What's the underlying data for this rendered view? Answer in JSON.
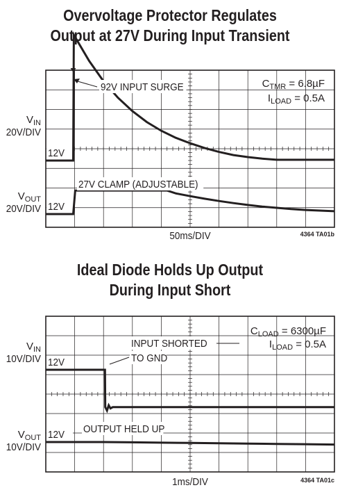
{
  "charts_text": {
    "top_title_line1": "Overvoltage Protector Regulates",
    "top_title_line2": "Output at 27V During Input Transient",
    "bottom_title_line1": "Ideal Diode Holds Up Output",
    "bottom_title_line2": "During Input Short"
  },
  "chart_data": [
    {
      "type": "line",
      "title": "Overvoltage Protector Regulates Output at 27V During Input Transient",
      "xlabel": "50ms/DIV",
      "code": "4364 TA01b",
      "x_unit": "div",
      "xlim": [
        0,
        10
      ],
      "grid": true,
      "conditions": [
        {
          "main": "C",
          "sub": "TMR",
          "rest": " = 6.8µF"
        },
        {
          "main": "I",
          "sub": "LOAD",
          "rest": " = 0.5A"
        }
      ],
      "channels": [
        {
          "name_main": "V",
          "name_sub": "IN",
          "scale": "20V/DIV",
          "ground_label": "12V"
        },
        {
          "name_main": "V",
          "name_sub": "OUT",
          "scale": "20V/DIV",
          "ground_label": "12V"
        }
      ],
      "annotations": [
        "92V INPUT SURGE",
        "27V CLAMP (ADJUSTABLE)"
      ],
      "series": [
        {
          "channel": 0,
          "x": [
            0,
            0.95,
            0.97,
            1.5,
            2,
            2.5,
            3,
            3.5,
            4,
            4.5,
            5,
            5.5,
            6,
            6.5,
            7,
            7.5,
            8,
            10
          ],
          "y": [
            12,
            12,
            92,
            75.5,
            62.5,
            52,
            43.5,
            36.5,
            31,
            26.5,
            23,
            20,
            17.5,
            15.5,
            14.2,
            13.2,
            12.5,
            12.5
          ]
        },
        {
          "channel": 1,
          "x": [
            0,
            0.95,
            1.02,
            4.2,
            4.5,
            5,
            5.5,
            6,
            6.5,
            7,
            7.5,
            8,
            8.5,
            9,
            10
          ],
          "y": [
            12,
            12,
            27,
            27,
            25.2,
            23.4,
            21.8,
            20.3,
            19,
            17.8,
            16.8,
            16,
            15.2,
            14.6,
            13.8
          ]
        }
      ]
    },
    {
      "type": "line",
      "title": "Ideal Diode Holds Up Output During Input Short",
      "xlabel": "1ms/DIV",
      "code": "4364 TA01c",
      "x_unit": "div",
      "xlim": [
        0,
        10
      ],
      "grid": true,
      "conditions": [
        {
          "main": "C",
          "sub": "LOAD",
          "rest": " = 6300µF"
        },
        {
          "main": "I",
          "sub": "LOAD",
          "rest": " = 0.5A"
        }
      ],
      "channels": [
        {
          "name_main": "V",
          "name_sub": "IN",
          "scale": "10V/DIV",
          "ground_label": "12V"
        },
        {
          "name_main": "V",
          "name_sub": "OUT",
          "scale": "10V/DIV",
          "ground_label": "12V"
        }
      ],
      "annotations": [
        "INPUT SHORTED",
        "TO GND",
        "OUTPUT HELD UP"
      ],
      "series": [
        {
          "channel": 0,
          "x": [
            0,
            2.05,
            2.06,
            2.12,
            2.18,
            2.24,
            2.32,
            10
          ],
          "y": [
            12,
            12,
            0,
            -1.1,
            0.6,
            -0.4,
            0,
            0
          ]
        },
        {
          "channel": 1,
          "x": [
            0,
            2,
            3,
            4,
            5,
            6,
            7,
            8,
            9,
            10
          ],
          "y": [
            12,
            12,
            11.9,
            11.8,
            11.7,
            11.6,
            11.5,
            11.4,
            11.3,
            11.2
          ]
        }
      ]
    }
  ]
}
